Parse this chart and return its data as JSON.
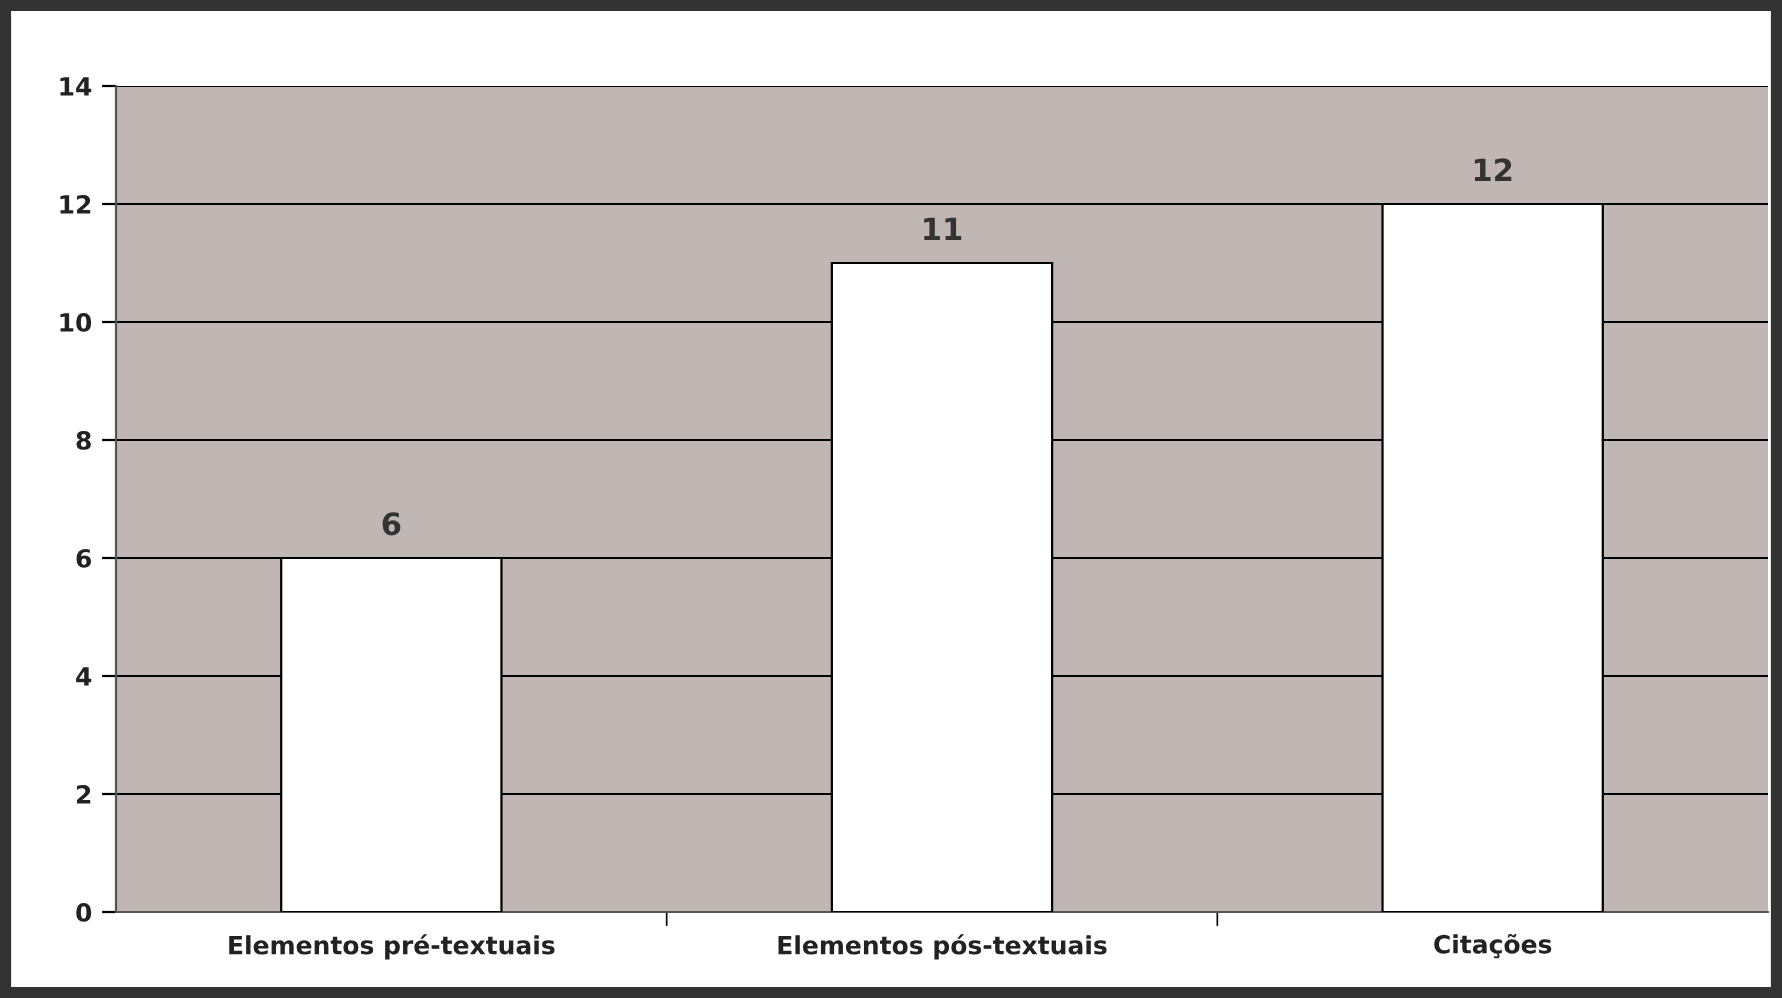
{
  "chart_data": {
    "type": "bar",
    "categories": [
      "Elementos pré-textuais",
      "Elementos pós-textuais",
      "Citações"
    ],
    "values": [
      6,
      11,
      12
    ],
    "color": "#ffffff",
    "ylim": [
      0,
      14
    ],
    "yticks": [
      0,
      2,
      4,
      6,
      8,
      10,
      12,
      14
    ],
    "grid": "y",
    "data_labels": true
  }
}
